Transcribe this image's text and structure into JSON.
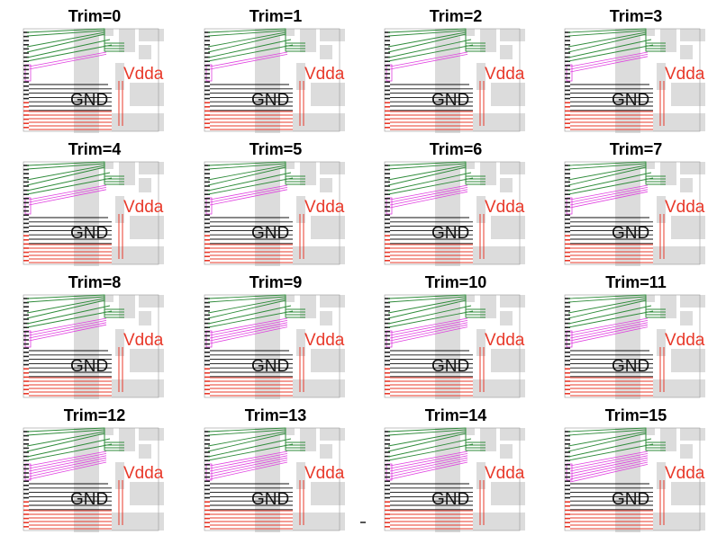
{
  "labels": {
    "ground": "GND",
    "supply": "Vdda"
  },
  "colors": {
    "ground_traces": "#111111",
    "supply_traces": "#e8392a",
    "upper_traces": "#2e8b3a",
    "trim_traces": "#e040e0",
    "shaded_region": "#dcdcdc"
  },
  "panels": [
    {
      "title": "Trim=0"
    },
    {
      "title": "Trim=1"
    },
    {
      "title": "Trim=2"
    },
    {
      "title": "Trim=3"
    },
    {
      "title": "Trim=4"
    },
    {
      "title": "Trim=5"
    },
    {
      "title": "Trim=6"
    },
    {
      "title": "Trim=7"
    },
    {
      "title": "Trim=8"
    },
    {
      "title": "Trim=9"
    },
    {
      "title": "Trim=10"
    },
    {
      "title": "Trim=11"
    },
    {
      "title": "Trim=12"
    },
    {
      "title": "Trim=13"
    },
    {
      "title": "Trim=14"
    },
    {
      "title": "Trim=15"
    }
  ]
}
